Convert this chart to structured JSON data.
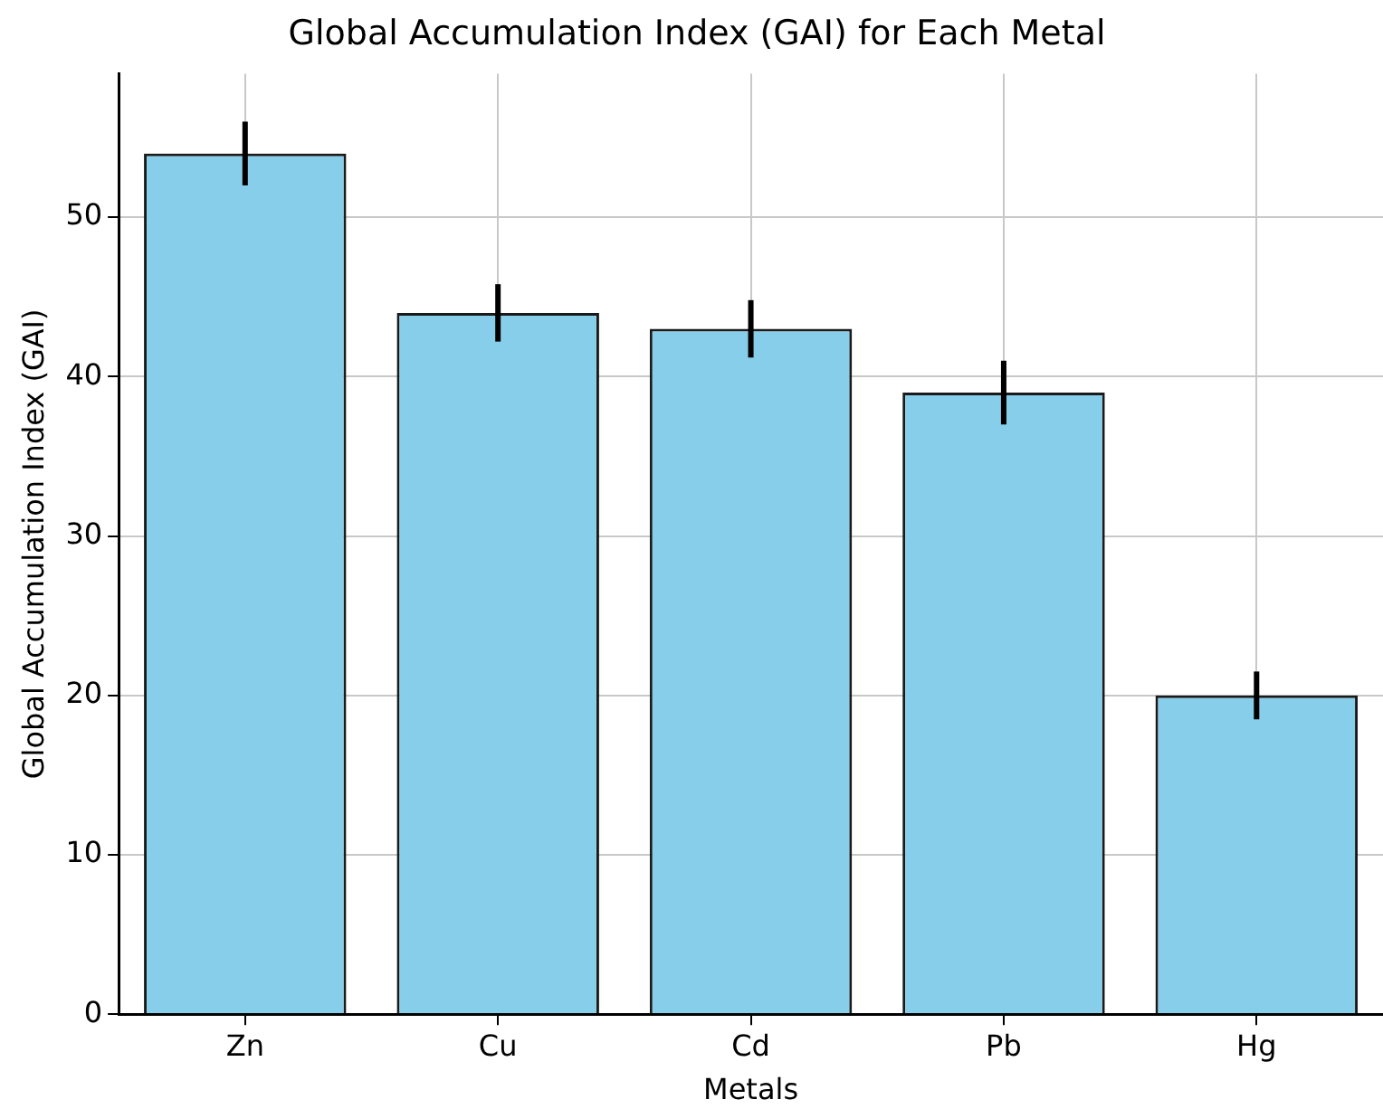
{
  "chart_data": {
    "type": "bar",
    "title": "Global Accumulation Index (GAI) for Each Metal",
    "xlabel": "Metals",
    "ylabel": "Global Accumulation Index (GAI)",
    "categories": [
      "Zn",
      "Cu",
      "Cd",
      "Pb",
      "Hg"
    ],
    "values": [
      54,
      44,
      43,
      39,
      20
    ],
    "errors": [
      2,
      1.8,
      1.8,
      2,
      1.5
    ],
    "color": "#87ceeb",
    "ylim": [
      0,
      59
    ],
    "yticks": [
      0,
      10,
      20,
      30,
      40,
      50
    ],
    "grid": true
  }
}
